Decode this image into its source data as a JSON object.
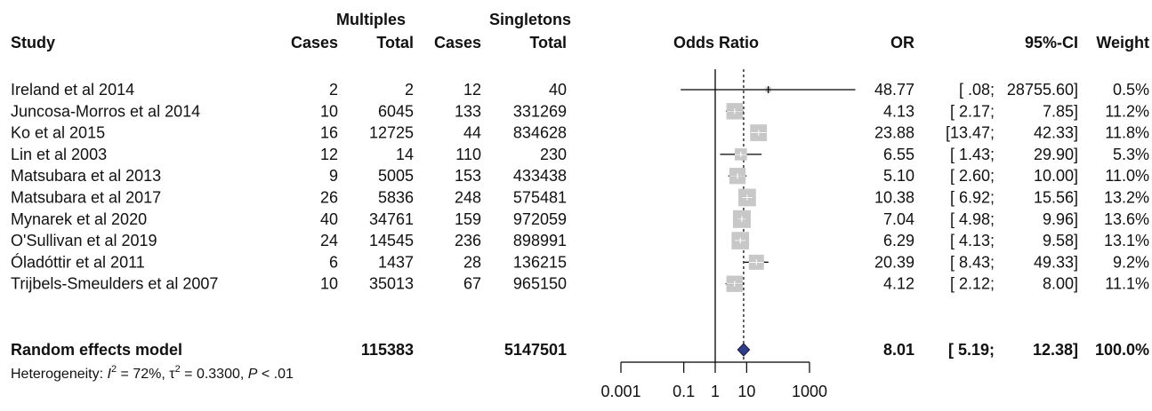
{
  "chart_data": {
    "type": "forest",
    "scale": "log",
    "xlim": [
      0.001,
      1000
    ],
    "null_value": 1,
    "pooled_line_value": 8.01,
    "x_ticks": [
      "0.001",
      "0.1",
      "1",
      "10",
      "1000"
    ],
    "x_tick_values": [
      0.001,
      0.1,
      1,
      10,
      1000
    ],
    "group_headers": [
      "Multiples",
      "Singletons"
    ],
    "columns": [
      "Study",
      "Cases",
      "Total",
      "Cases",
      "Total",
      "Odds Ratio",
      "OR",
      "95%-CI",
      "Weight"
    ],
    "studies": [
      {
        "study": "Ireland et al 2014",
        "m_cases": "2",
        "m_total": "2",
        "s_cases": "12",
        "s_total": "40",
        "or": 48.77,
        "lo": 0.08,
        "hi": 28755.6,
        "weight": 0.5,
        "or_text": "48.77",
        "ci_lo_text": "[ .08;",
        "ci_hi_text": "28755.60]",
        "weight_text": "0.5%"
      },
      {
        "study": "Juncosa-Morros et al 2014",
        "m_cases": "10",
        "m_total": "6045",
        "s_cases": "133",
        "s_total": "331269",
        "or": 4.13,
        "lo": 2.17,
        "hi": 7.85,
        "weight": 11.2,
        "or_text": "4.13",
        "ci_lo_text": "[ 2.17;",
        "ci_hi_text": "7.85]",
        "weight_text": "11.2%"
      },
      {
        "study": "Ko et al 2015",
        "m_cases": "16",
        "m_total": "12725",
        "s_cases": "44",
        "s_total": "834628",
        "or": 23.88,
        "lo": 13.47,
        "hi": 42.33,
        "weight": 11.8,
        "or_text": "23.88",
        "ci_lo_text": "[13.47;",
        "ci_hi_text": "42.33]",
        "weight_text": "11.8%"
      },
      {
        "study": "Lin et al 2003",
        "m_cases": "12",
        "m_total": "14",
        "s_cases": "110",
        "s_total": "230",
        "or": 6.55,
        "lo": 1.43,
        "hi": 29.9,
        "weight": 5.3,
        "or_text": "6.55",
        "ci_lo_text": "[ 1.43;",
        "ci_hi_text": "29.90]",
        "weight_text": "5.3%"
      },
      {
        "study": "Matsubara et al 2013",
        "m_cases": "9",
        "m_total": "5005",
        "s_cases": "153",
        "s_total": "433438",
        "or": 5.1,
        "lo": 2.6,
        "hi": 10.0,
        "weight": 11.0,
        "or_text": "5.10",
        "ci_lo_text": "[ 2.60;",
        "ci_hi_text": "10.00]",
        "weight_text": "11.0%"
      },
      {
        "study": "Matsubara et al 2017",
        "m_cases": "26",
        "m_total": "5836",
        "s_cases": "248",
        "s_total": "575481",
        "or": 10.38,
        "lo": 6.92,
        "hi": 15.56,
        "weight": 13.2,
        "or_text": "10.38",
        "ci_lo_text": "[ 6.92;",
        "ci_hi_text": "15.56]",
        "weight_text": "13.2%"
      },
      {
        "study": "Mynarek et al 2020",
        "m_cases": "40",
        "m_total": "34761",
        "s_cases": "159",
        "s_total": "972059",
        "or": 7.04,
        "lo": 4.98,
        "hi": 9.96,
        "weight": 13.6,
        "or_text": "7.04",
        "ci_lo_text": "[ 4.98;",
        "ci_hi_text": "9.96]",
        "weight_text": "13.6%"
      },
      {
        "study": "O'Sullivan et al 2019",
        "m_cases": "24",
        "m_total": "14545",
        "s_cases": "236",
        "s_total": "898991",
        "or": 6.29,
        "lo": 4.13,
        "hi": 9.58,
        "weight": 13.1,
        "or_text": "6.29",
        "ci_lo_text": "[ 4.13;",
        "ci_hi_text": "9.58]",
        "weight_text": "13.1%"
      },
      {
        "study": "Óladóttir et al 2011",
        "m_cases": "6",
        "m_total": "1437",
        "s_cases": "28",
        "s_total": "136215",
        "or": 20.39,
        "lo": 8.43,
        "hi": 49.33,
        "weight": 9.2,
        "or_text": "20.39",
        "ci_lo_text": "[ 8.43;",
        "ci_hi_text": "49.33]",
        "weight_text": "9.2%"
      },
      {
        "study": "Trijbels-Smeulders et al 2007",
        "m_cases": "10",
        "m_total": "35013",
        "s_cases": "67",
        "s_total": "965150",
        "or": 4.12,
        "lo": 2.12,
        "hi": 8.0,
        "weight": 11.1,
        "or_text": "4.12",
        "ci_lo_text": "[ 2.12;",
        "ci_hi_text": "8.00]",
        "weight_text": "11.1%"
      }
    ],
    "pooled": {
      "label": "Random effects model",
      "m_total": "115383",
      "s_total": "5147501",
      "or": 8.01,
      "lo": 5.19,
      "hi": 12.38,
      "or_text": "8.01",
      "ci_lo_text": "[ 5.19;",
      "ci_hi_text": "12.38]",
      "weight_text": "100.0%"
    },
    "heterogeneity": {
      "prefix": "Heterogeneity: ",
      "i2_symbol": "I",
      "i2_exp": "2",
      "i2_value": " = 72%, ",
      "tau2_symbol": "τ",
      "tau2_exp": "2",
      "tau2_value": " = 0.3300, ",
      "p_symbol": "P",
      "p_value": " < .01"
    },
    "colors": {
      "text": "#111111",
      "line": "#000000",
      "box": "#c8c8c8",
      "box_tick_light": "#ffffff",
      "diamond_fill": "#2e3d8c",
      "diamond_stroke": "#1a1a3a"
    }
  }
}
